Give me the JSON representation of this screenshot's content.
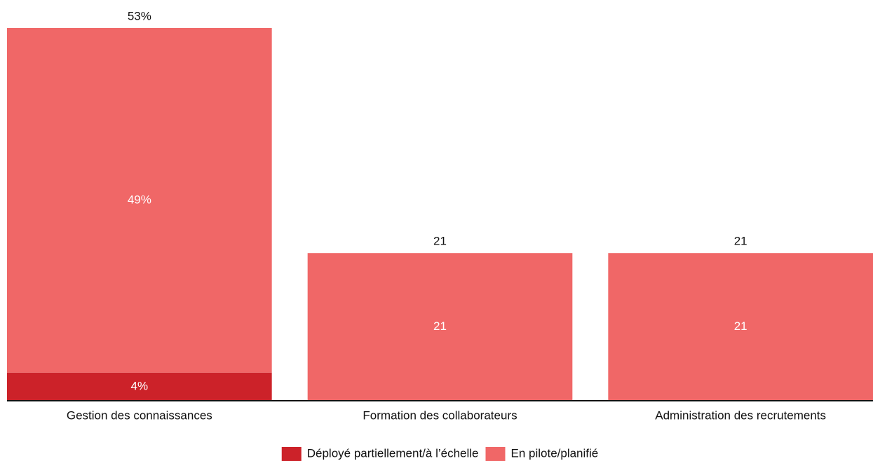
{
  "chart_data": {
    "type": "stacked_bar",
    "categories": [
      "Gestion des connaissances",
      "Formation des collaborateurs",
      "Administration des recrutements"
    ],
    "series": [
      {
        "name": "Déployé partiellement/à l’échelle",
        "color": "#cc2229",
        "values": [
          4,
          0,
          0
        ],
        "value_labels": [
          "4%",
          null,
          null
        ]
      },
      {
        "name": "En pilote/planifié",
        "color": "#f06767",
        "values": [
          49,
          21,
          21
        ],
        "value_labels": [
          "49%",
          "21",
          "21"
        ]
      }
    ],
    "totals": [
      53,
      21,
      21
    ],
    "total_labels": [
      "53%",
      "21",
      "21"
    ],
    "ylim": [
      0,
      53
    ],
    "legend": "bottom"
  }
}
